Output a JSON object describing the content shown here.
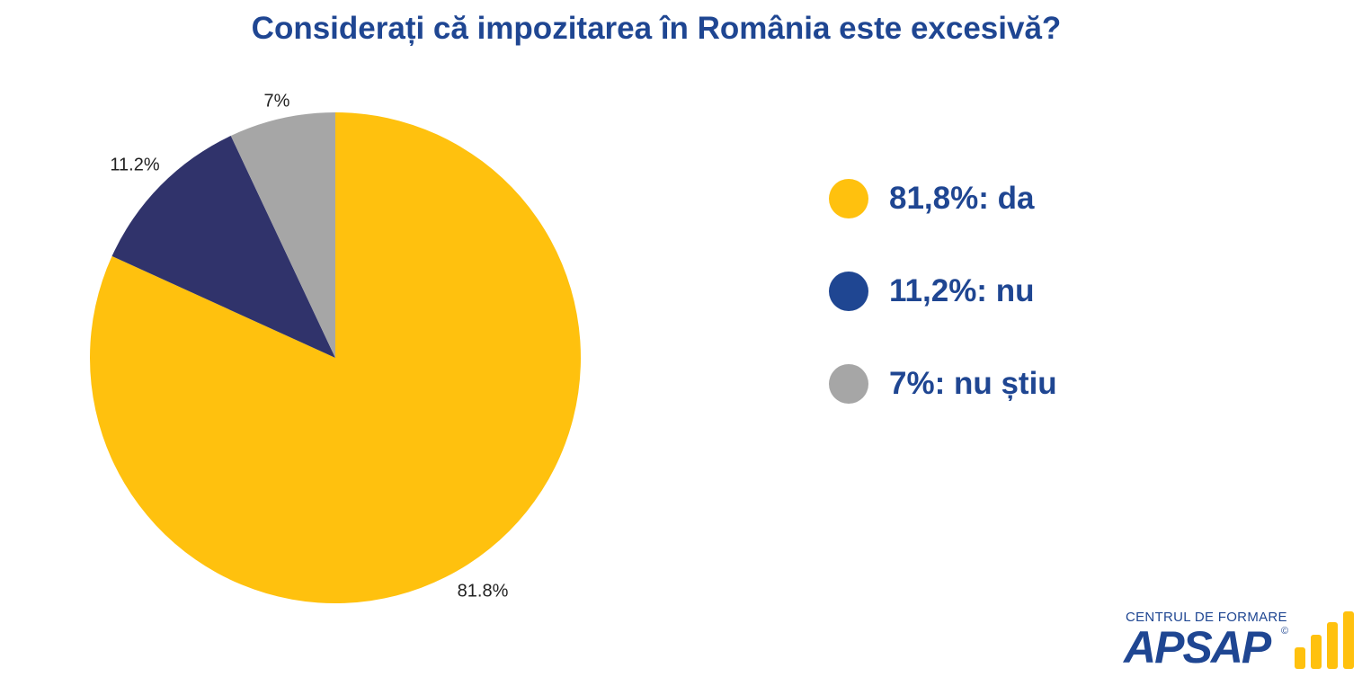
{
  "title": "Considerați că impozitarea în România este excesivă?",
  "chart_data": {
    "type": "pie",
    "slices": [
      {
        "label": "da",
        "value": 81.8,
        "display": "81.8%",
        "color": "#ffc10e"
      },
      {
        "label": "nu",
        "value": 11.2,
        "display": "11.2%",
        "color": "#30336b"
      },
      {
        "label": "nu știu",
        "value": 7,
        "display": "7%",
        "color": "#a6a6a6"
      }
    ]
  },
  "legend": [
    {
      "text": "81,8%: da",
      "color": "#ffc10e"
    },
    {
      "text": "11,2%: nu",
      "color": "#1f4692"
    },
    {
      "text": "7%: nu știu",
      "color": "#a6a6a6"
    }
  ],
  "logo": {
    "top_text": "CENTRUL DE FORMARE",
    "main_text": "APSAP",
    "copyright": "©",
    "bar_color": "#ffc10e"
  }
}
